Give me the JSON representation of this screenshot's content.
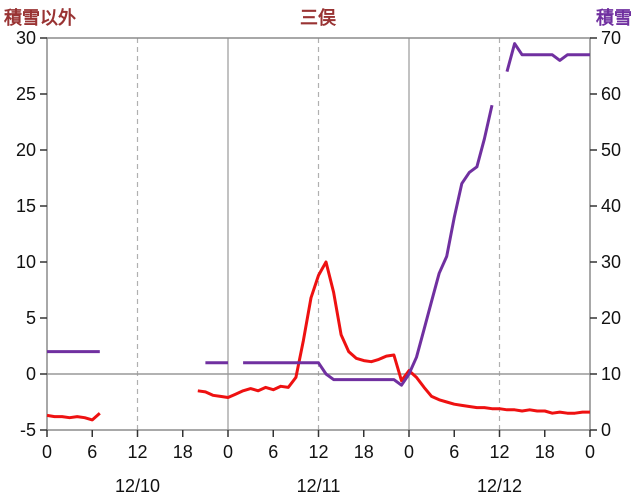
{
  "header": {
    "left_axis_label": "積雪以外",
    "title": "三俣",
    "right_axis_label": "積雪"
  },
  "colors": {
    "header_left": "#993333",
    "title": "#993333",
    "header_right": "#7030a0",
    "grid": "#b0b0b0",
    "day_line": "#999999",
    "frame": "#8c8c8c",
    "tick": "#333333",
    "temp_line": "#ee1111",
    "snow_line": "#7030a0"
  },
  "chart_data": {
    "type": "line",
    "title": "三俣",
    "x_unit": "hour",
    "x_range": [
      0,
      72
    ],
    "x_ticks": [
      {
        "hour": 0,
        "label": "0"
      },
      {
        "hour": 6,
        "label": "6"
      },
      {
        "hour": 12,
        "label": "12"
      },
      {
        "hour": 18,
        "label": "18"
      },
      {
        "hour": 24,
        "label": "0"
      },
      {
        "hour": 30,
        "label": "6"
      },
      {
        "hour": 36,
        "label": "12"
      },
      {
        "hour": 42,
        "label": "18"
      },
      {
        "hour": 48,
        "label": "0"
      },
      {
        "hour": 54,
        "label": "6"
      },
      {
        "hour": 60,
        "label": "12"
      },
      {
        "hour": 66,
        "label": "18"
      },
      {
        "hour": 72,
        "label": "0"
      }
    ],
    "x_gridlines": [
      {
        "hour": 12,
        "style": "dashed"
      },
      {
        "hour": 24,
        "style": "solid"
      },
      {
        "hour": 36,
        "style": "dashed"
      },
      {
        "hour": 48,
        "style": "solid"
      },
      {
        "hour": 60,
        "style": "dashed"
      }
    ],
    "date_labels": [
      {
        "hour": 12,
        "label": "12/10"
      },
      {
        "hour": 36,
        "label": "12/11"
      },
      {
        "hour": 60,
        "label": "12/12"
      }
    ],
    "left_axis": {
      "label": "積雪以外",
      "min": -5,
      "max": 30,
      "ticks": [
        30,
        25,
        20,
        15,
        10,
        5,
        0,
        -5
      ]
    },
    "right_axis": {
      "label": "積雪",
      "min": 0,
      "max": 70,
      "ticks": [
        70,
        60,
        50,
        40,
        30,
        20,
        10,
        0
      ]
    },
    "grid": "zero-line and 12h verticals only",
    "legend_position": "none",
    "series": [
      {
        "name": "積雪以外",
        "axis": "left",
        "color": "#ee1111",
        "values": [
          -3.7,
          -3.8,
          -3.8,
          -3.9,
          -3.8,
          -3.9,
          -4.1,
          -3.5,
          null,
          null,
          null,
          null,
          null,
          null,
          null,
          null,
          null,
          null,
          null,
          null,
          -1.5,
          -1.6,
          -1.9,
          -2.0,
          -2.1,
          -1.8,
          -1.5,
          -1.3,
          -1.5,
          -1.2,
          -1.4,
          -1.1,
          -1.2,
          -0.3,
          3.0,
          6.8,
          8.8,
          10.0,
          7.3,
          3.5,
          2.0,
          1.4,
          1.2,
          1.1,
          1.3,
          1.6,
          1.7,
          -0.6,
          0.3,
          -0.3,
          -1.2,
          -2.0,
          -2.3,
          -2.5,
          -2.7,
          -2.8,
          -2.9,
          -3.0,
          -3.0,
          -3.1,
          -3.1,
          -3.2,
          -3.2,
          -3.3,
          -3.2,
          -3.3,
          -3.3,
          -3.5,
          -3.4,
          -3.5,
          -3.5,
          -3.4,
          -3.4
        ]
      },
      {
        "name": "積雪",
        "axis": "right",
        "color": "#7030a0",
        "values": [
          14,
          14,
          14,
          14,
          14,
          14,
          14,
          14,
          null,
          null,
          null,
          null,
          null,
          null,
          null,
          null,
          null,
          null,
          null,
          null,
          null,
          12,
          12,
          12,
          12,
          null,
          12,
          12,
          12,
          12,
          12,
          12,
          12,
          12,
          12,
          12,
          12,
          10,
          9,
          9,
          9,
          9,
          9,
          9,
          9,
          9,
          9,
          8,
          10,
          13,
          18,
          23,
          28,
          31,
          38,
          44,
          46,
          47,
          52,
          58,
          null,
          64,
          69,
          67,
          67,
          67,
          67,
          67,
          66,
          67,
          67,
          67,
          67
        ]
      }
    ]
  }
}
